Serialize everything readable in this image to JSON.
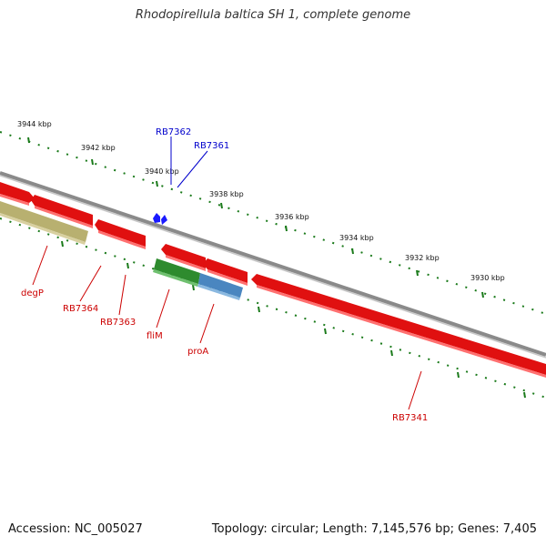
{
  "title": "Rhodopirellula baltica SH 1, complete genome",
  "footer": {
    "accession": "Accession: NC_005027",
    "summary": "Topology: circular; Length: 7,145,576 bp; Genes: 7,405"
  },
  "colors": {
    "forward_gene": "#e01010",
    "reverse_gene": "#e01010",
    "flim_gene": "#2e8b2e",
    "proa_gene": "#4a86c0",
    "degp_gene": "#b8b070",
    "forward_label": "#0000cc",
    "reverse_label": "#cc0000",
    "ticks": "#1a7a1a",
    "backbone": "#808080"
  },
  "scale_labels": [
    "3944 kbp",
    "3942 kbp",
    "3940 kbp",
    "3938 kbp",
    "3936 kbp",
    "3934 kbp",
    "3932 kbp",
    "3930 kbp"
  ],
  "genes": [
    {
      "name": "RB7362",
      "strand": "forward"
    },
    {
      "name": "RB7361",
      "strand": "forward"
    },
    {
      "name": "degP",
      "strand": "reverse"
    },
    {
      "name": "RB7364",
      "strand": "reverse"
    },
    {
      "name": "RB7363",
      "strand": "reverse"
    },
    {
      "name": "fliM",
      "strand": "reverse"
    },
    {
      "name": "proA",
      "strand": "reverse"
    },
    {
      "name": "RB7341",
      "strand": "reverse"
    }
  ]
}
